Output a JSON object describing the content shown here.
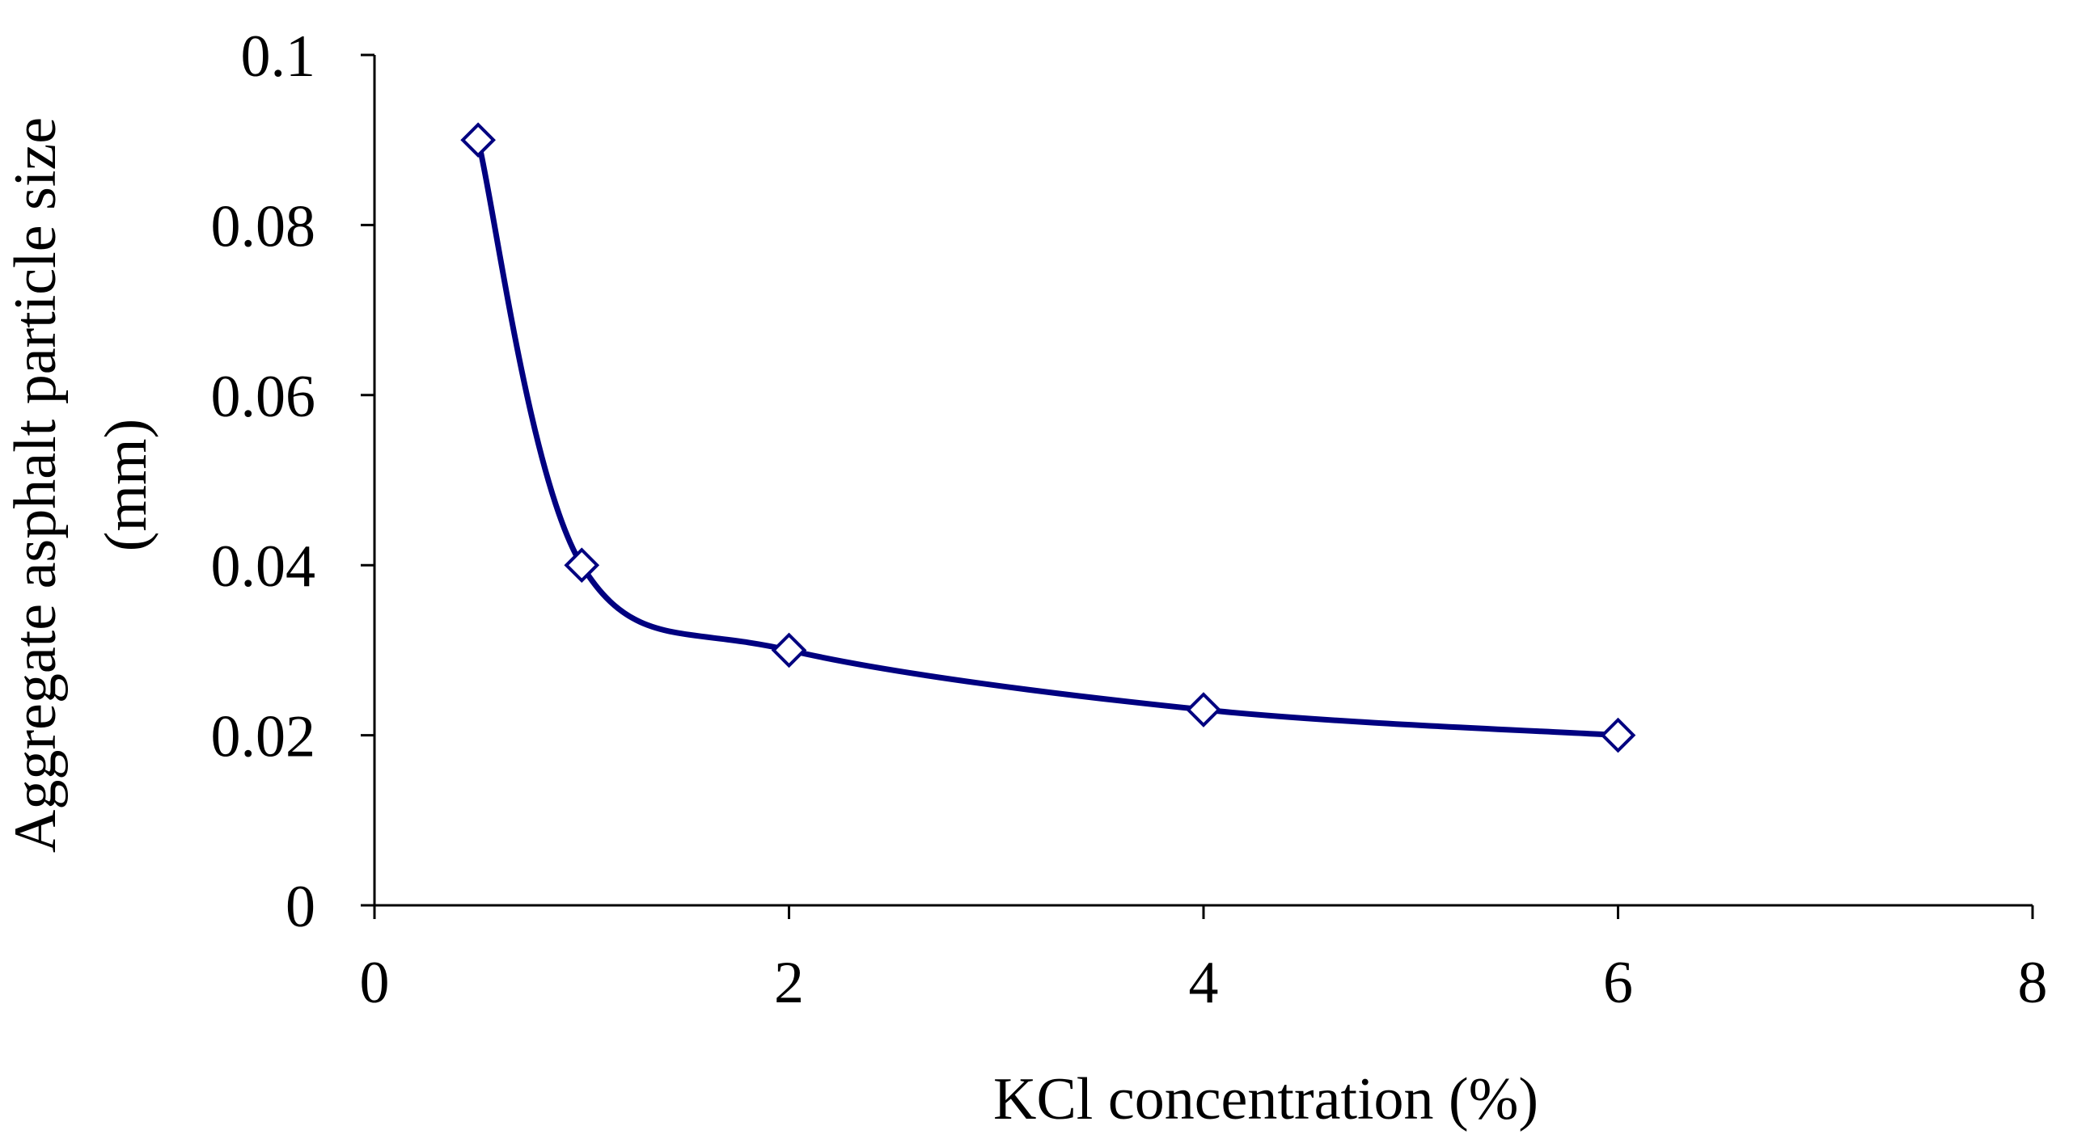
{
  "chart_data": {
    "type": "line",
    "title": "",
    "xlabel": "KCl concentration (%)",
    "ylabel_lines": [
      "Aggregate asphalt particle size",
      "(mm)"
    ],
    "xlim": [
      0,
      8
    ],
    "ylim": [
      0,
      0.1
    ],
    "x_ticks": [
      0,
      2,
      4,
      6,
      8
    ],
    "x_tick_labels": [
      "0",
      "2",
      "4",
      "6",
      "8"
    ],
    "y_ticks": [
      0,
      0.02,
      0.04,
      0.06,
      0.08,
      0.1
    ],
    "y_tick_labels": [
      "0",
      "0.02",
      "0.04",
      "0.06",
      "0.08",
      "0.1"
    ],
    "grid": false,
    "legend": "none",
    "series": [
      {
        "name": "Aggregate asphalt particle size",
        "marker": "diamond-open",
        "smooth": true,
        "color": "#000080",
        "x": [
          0.5,
          1,
          2,
          4,
          6
        ],
        "values": [
          0.09,
          0.04,
          0.03,
          0.023,
          0.02
        ]
      }
    ]
  }
}
